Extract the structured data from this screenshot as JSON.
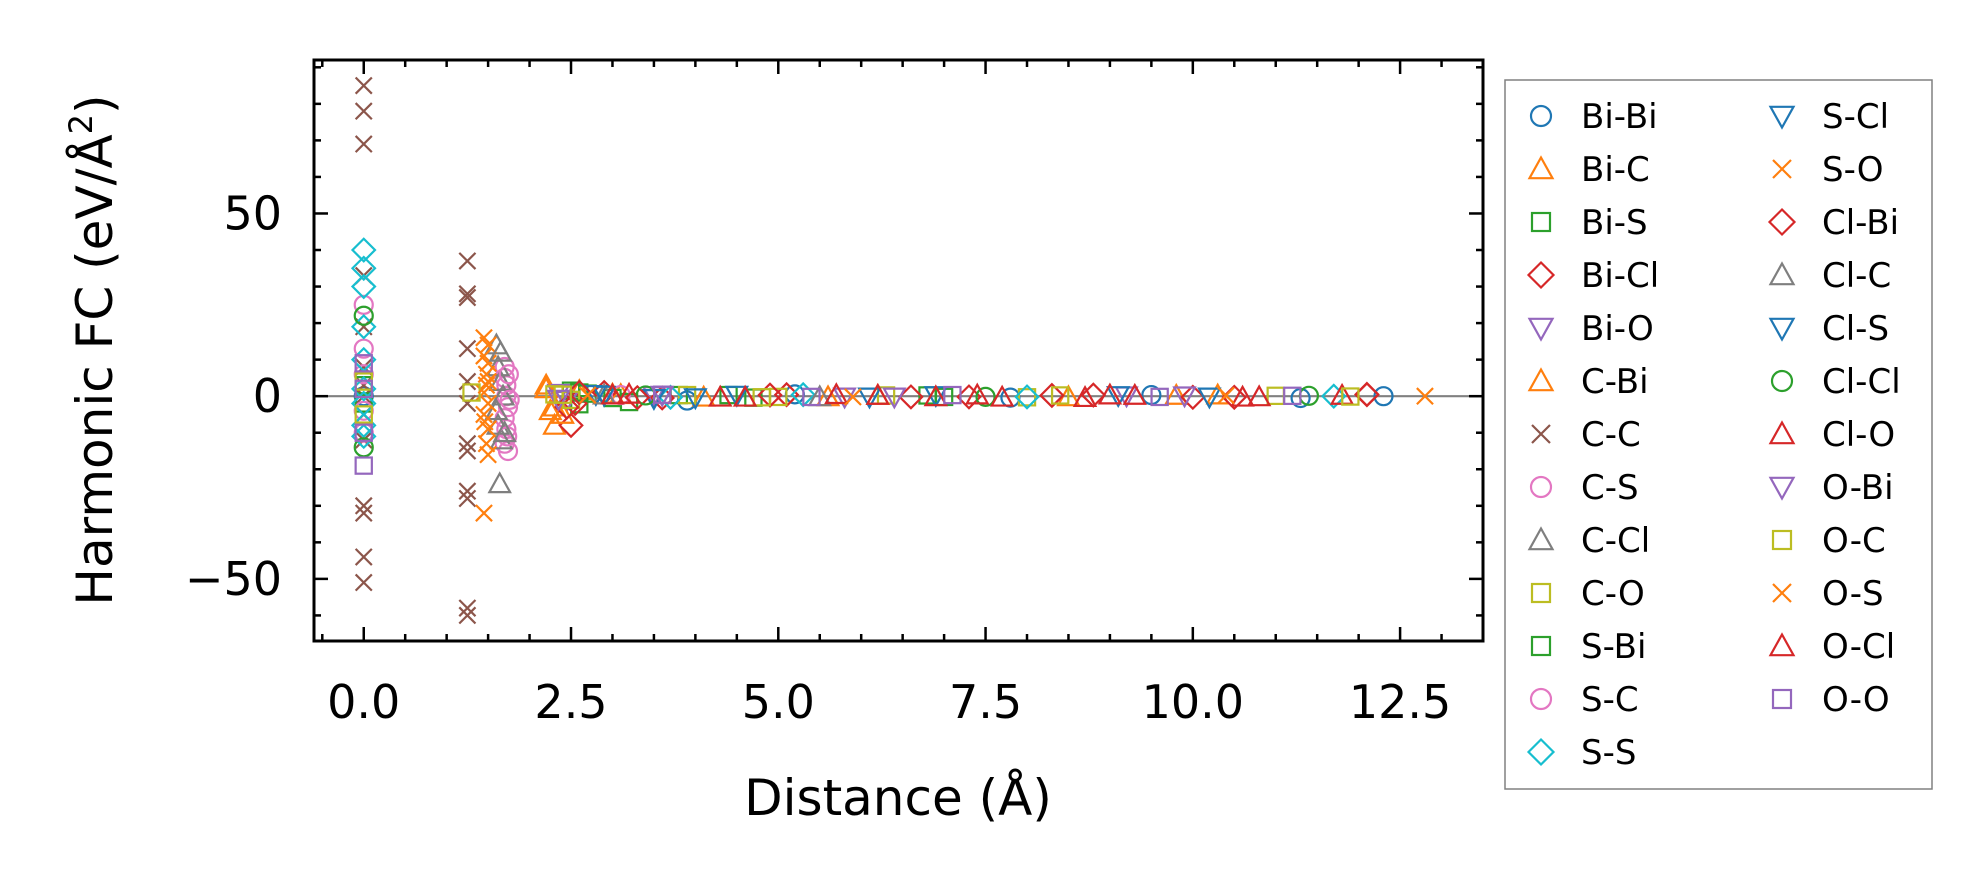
{
  "chart_data": {
    "type": "scatter",
    "title": "",
    "xlabel": "Distance (Å)",
    "ylabel": "Harmonic FC (eV/Å²)",
    "ylabel_parts": {
      "main": "Harmonic FC (eV/Å",
      "sup": "2",
      "close": ")"
    },
    "xlim": [
      -0.6,
      13.5
    ],
    "ylim": [
      -67,
      92
    ],
    "xticks": [
      0.0,
      2.5,
      5.0,
      7.5,
      10.0,
      12.5
    ],
    "xtick_labels": [
      "0.0",
      "2.5",
      "5.0",
      "7.5",
      "10.0",
      "12.5"
    ],
    "yticks": [
      -50,
      0,
      50
    ],
    "ytick_labels": [
      "−50",
      "0",
      "50"
    ],
    "grid": false,
    "zero_line": true,
    "legend": {
      "placement": "outside-right",
      "columns": 2
    },
    "series": [
      {
        "name": "Bi-Bi",
        "marker": "circle",
        "color": "#1f77b4",
        "x": [
          0,
          3.9,
          5.2,
          7.8,
          9.5,
          11.3,
          12.3
        ],
        "y": [
          0,
          -1.2,
          0.5,
          -0.4,
          0.3,
          -0.5,
          0
        ]
      },
      {
        "name": "Bi-C",
        "marker": "triangle-up",
        "color": "#ff7f0e",
        "x": [
          2.2,
          2.25,
          2.3,
          2.6,
          3.1,
          4.1,
          6.2,
          8.5,
          10.3
        ],
        "y": [
          3,
          -4,
          -8,
          1.5,
          0.4,
          -0.3,
          0.2,
          -0.2,
          0.3
        ]
      },
      {
        "name": "Bi-S",
        "marker": "square",
        "color": "#2ca02c",
        "x": [
          2.5,
          2.6,
          2.7,
          3.2,
          3.8,
          4.7,
          6.8
        ],
        "y": [
          1.5,
          -2.2,
          0.7,
          -1.6,
          0.3,
          -0.4,
          0.2
        ]
      },
      {
        "name": "Bi-Cl",
        "marker": "diamond",
        "color": "#d62728",
        "x": [
          2.5,
          2.55,
          2.9,
          3.6,
          5.1,
          7.3,
          8.8,
          10.5,
          12.1
        ],
        "y": [
          -8,
          -2,
          1,
          -0.5,
          0.4,
          -0.2,
          0.3,
          -0.3,
          0.5
        ]
      },
      {
        "name": "Bi-O",
        "marker": "triangle-down",
        "color": "#9467bd",
        "x": [
          2.35,
          2.45,
          3.5,
          5.8,
          9.2
        ],
        "y": [
          0.8,
          -1.1,
          0.2,
          -0.2,
          0.1
        ]
      },
      {
        "name": "C-Bi",
        "marker": "triangle-up",
        "color": "#ff7f0e",
        "x": [
          2.2,
          2.3,
          2.4,
          3.0,
          5.6,
          9.8
        ],
        "y": [
          2,
          -3,
          -5,
          0.5,
          -0.2,
          0.2
        ]
      },
      {
        "name": "C-C",
        "marker": "x",
        "color": "#8c564b",
        "x": [
          0,
          0,
          0,
          0,
          0,
          0,
          0,
          0,
          0,
          0,
          0,
          0,
          0,
          0,
          1.25,
          1.25,
          1.25,
          1.25,
          1.25,
          1.25,
          1.25,
          1.25,
          1.25,
          1.25,
          1.25,
          1.25
        ],
        "y": [
          85,
          78,
          69,
          33,
          19,
          8,
          3,
          -5,
          -12,
          -30,
          -32,
          -44,
          -51,
          0,
          37,
          28,
          27,
          13,
          4,
          -2,
          -13,
          -15,
          -26,
          -28,
          -58,
          -60
        ]
      },
      {
        "name": "C-S",
        "marker": "circle",
        "color": "#e377c2",
        "x": [
          0,
          0,
          0,
          1.7,
          1.7,
          1.72,
          1.72,
          1.74,
          1.7,
          1.72,
          1.7,
          1.74
        ],
        "y": [
          25,
          6,
          -10,
          8,
          5,
          3,
          0,
          -3,
          -6,
          -9,
          -13,
          -15
        ]
      },
      {
        "name": "C-Cl",
        "marker": "triangle-up",
        "color": "#7f7f7f",
        "x": [
          1.6,
          1.62,
          1.65,
          1.68,
          1.6,
          1.62,
          1.66,
          1.64
        ],
        "y": [
          14,
          8,
          4,
          0,
          -4,
          -8,
          -12,
          -24
        ]
      },
      {
        "name": "C-O",
        "marker": "square",
        "color": "#bcbd22",
        "x": [
          2.3,
          2.5,
          3.9,
          5.0,
          6.3,
          8.0,
          11.0
        ],
        "y": [
          0.5,
          -1,
          0.3,
          -0.2,
          0.2,
          -0.3,
          0.1
        ]
      },
      {
        "name": "S-Bi",
        "marker": "square",
        "color": "#2ca02c",
        "x": [
          0,
          0,
          2.6,
          3.0,
          4.4,
          7.0
        ],
        "y": [
          3,
          -2,
          1,
          -0.5,
          0.3,
          -0.2
        ]
      },
      {
        "name": "S-C",
        "marker": "circle",
        "color": "#e377c2",
        "x": [
          0,
          0,
          1.75,
          1.76,
          1.73,
          3.1
        ],
        "y": [
          13,
          -4,
          6,
          -1,
          -11,
          0.3
        ]
      },
      {
        "name": "S-S",
        "marker": "diamond",
        "color": "#17becf",
        "x": [
          0,
          0,
          0,
          0,
          0,
          0,
          0,
          0,
          0,
          2.6,
          3.7,
          5.3,
          8.0,
          11.7
        ],
        "y": [
          40,
          35,
          30,
          19,
          10,
          2,
          -2,
          -8,
          -11,
          1,
          -0.3,
          0.4,
          -0.2,
          0
        ]
      },
      {
        "name": "S-Cl",
        "marker": "triangle-down",
        "color": "#1f77b4",
        "x": [
          2.8,
          3.5,
          4.5,
          6.1,
          9.1
        ],
        "y": [
          0.5,
          -0.6,
          0.3,
          -0.2,
          0.2
        ]
      },
      {
        "name": "S-O",
        "marker": "x",
        "color": "#ff7f0e",
        "x": [
          1.45,
          1.5,
          1.45,
          1.5,
          1.48,
          1.5,
          1.45,
          1.5,
          1.45,
          1.5,
          1.48,
          1.5,
          1.45,
          12.8
        ],
        "y": [
          16,
          14,
          11,
          9,
          6,
          4,
          1,
          -2,
          -5,
          -9,
          -13,
          -16,
          -32,
          0
        ]
      },
      {
        "name": "Cl-Bi",
        "marker": "diamond",
        "color": "#d62728",
        "x": [
          2.45,
          2.6,
          3.3,
          4.9,
          6.6,
          8.3,
          10.0,
          12.1
        ],
        "y": [
          -3,
          1,
          -0.4,
          0.3,
          -0.2,
          0.2,
          -0.3,
          0.4
        ]
      },
      {
        "name": "Cl-C",
        "marker": "triangle-up",
        "color": "#7f7f7f",
        "x": [
          1.65,
          1.7,
          2.9,
          5.5
        ],
        "y": [
          12,
          -10,
          0.3,
          -0.2
        ]
      },
      {
        "name": "Cl-S",
        "marker": "triangle-down",
        "color": "#1f77b4",
        "x": [
          2.9,
          4.0,
          6.9,
          10.2
        ],
        "y": [
          0.3,
          -0.4,
          0.2,
          -0.2
        ]
      },
      {
        "name": "Cl-Cl",
        "marker": "circle",
        "color": "#2ca02c",
        "x": [
          0,
          0,
          3.4,
          7.5,
          11.4
        ],
        "y": [
          22,
          -14,
          0.2,
          -0.2,
          0.1
        ]
      },
      {
        "name": "Cl-O",
        "marker": "triangle-up",
        "color": "#d62728",
        "x": [
          3.2,
          4.3,
          5.7,
          6.9,
          7.4,
          8.7,
          9.3,
          10.6,
          11.8
        ],
        "y": [
          0.5,
          -0.3,
          0.4,
          -0.2,
          0.3,
          -0.4,
          0.2,
          -0.3,
          0.2
        ]
      },
      {
        "name": "O-Bi",
        "marker": "triangle-down",
        "color": "#9467bd",
        "x": [
          2.35,
          3.6,
          6.4,
          9.9
        ],
        "y": [
          -0.8,
          0.3,
          -0.2,
          0.1
        ]
      },
      {
        "name": "O-C",
        "marker": "square",
        "color": "#bcbd22",
        "x": [
          0,
          0,
          1.3,
          2.4,
          4.8,
          8.4,
          11.9
        ],
        "y": [
          4,
          -5,
          1,
          0.4,
          -0.3,
          0.2,
          -0.1
        ]
      },
      {
        "name": "O-S",
        "marker": "x",
        "color": "#ff7f0e",
        "x": [
          1.48,
          1.46,
          2.7,
          5.9,
          10.4
        ],
        "y": [
          3,
          -7,
          0.3,
          -0.2,
          0.2
        ]
      },
      {
        "name": "O-Cl",
        "marker": "triangle-up",
        "color": "#d62728",
        "x": [
          3.0,
          4.6,
          6.2,
          7.7,
          9.0,
          10.8
        ],
        "y": [
          0.3,
          -0.3,
          0.2,
          -0.3,
          0.3,
          -0.2
        ]
      },
      {
        "name": "O-O",
        "marker": "square",
        "color": "#9467bd",
        "x": [
          0,
          0,
          0,
          0,
          3.6,
          5.4,
          7.1,
          9.6,
          11.2
        ],
        "y": [
          9,
          2,
          -10,
          -19,
          0.4,
          -0.2,
          0.3,
          -0.2,
          0.1
        ]
      }
    ]
  }
}
